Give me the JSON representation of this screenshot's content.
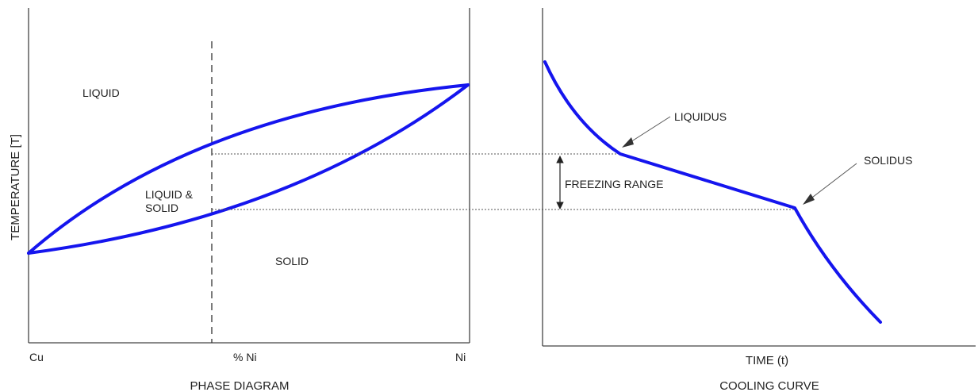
{
  "phase_diagram": {
    "caption": "PHASE DIAGRAM",
    "y_axis_label": "TEMPERATURE [T]",
    "x_left_label": "Cu",
    "x_mid_label": "% Ni",
    "x_right_label": "Ni",
    "regions": {
      "liquid": "LIQUID",
      "liquid_solid_line1": "LIQUID &",
      "liquid_solid_line2": "SOLID",
      "solid": "SOLID"
    }
  },
  "cooling_curve": {
    "caption": "COOLING CURVE",
    "x_axis_label": "TIME (t)",
    "liquidus_label": "LIQUIDUS",
    "solidus_label": "SOLIDUS",
    "freezing_range_label": "FREEZING RANGE"
  },
  "colors": {
    "curve": "#1515ee",
    "axis": "#444444",
    "guide": "#555555"
  }
}
